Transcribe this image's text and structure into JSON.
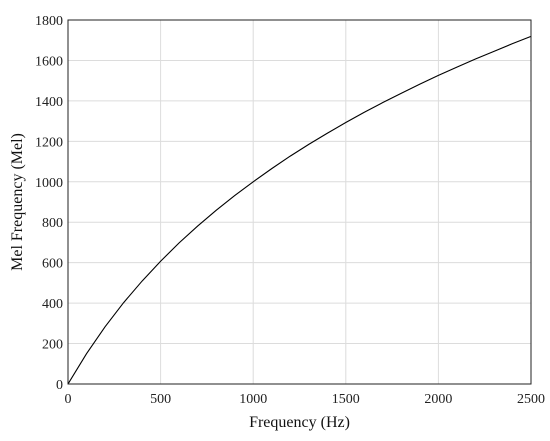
{
  "chart_data": {
    "type": "line",
    "title": "",
    "xlabel": "Frequency (Hz)",
    "ylabel": "Mel Frequency (Mel)",
    "xlim": [
      0,
      2500
    ],
    "ylim": [
      0,
      1800
    ],
    "xticks": [
      0,
      500,
      1000,
      1500,
      2000,
      2500
    ],
    "yticks": [
      0,
      200,
      400,
      600,
      800,
      1000,
      1200,
      1400,
      1600,
      1800
    ],
    "grid": true,
    "legend": "none",
    "line_color": "#000000",
    "series": [
      {
        "x": [
          0,
          100,
          200,
          300,
          400,
          500,
          600,
          700,
          800,
          900,
          1000,
          1100,
          1200,
          1300,
          1400,
          1500,
          1600,
          1700,
          1800,
          1900,
          2000,
          2100,
          2200,
          2300,
          2400,
          2500
        ],
        "y": [
          0,
          150,
          283,
          402,
          509,
          607,
          698,
          781,
          859,
          932,
          1000,
          1065,
          1127,
          1185,
          1240,
          1293,
          1344,
          1392,
          1438,
          1483,
          1526,
          1567,
          1607,
          1645,
          1683,
          1719
        ]
      }
    ]
  }
}
